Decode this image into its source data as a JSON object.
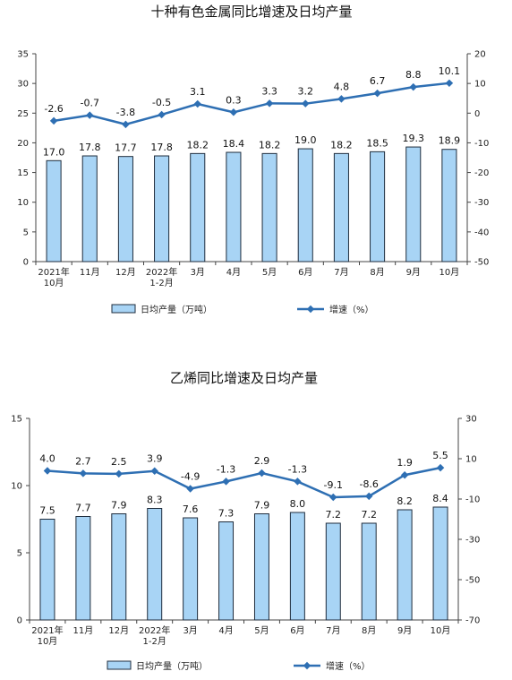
{
  "chart_data": [
    {
      "type": "bar",
      "title": "十种有色金属同比增速及日均产量",
      "categories": [
        "2021年\n10月",
        "11月",
        "12月",
        "2022年\n1-2月",
        "3月",
        "4月",
        "5月",
        "6月",
        "7月",
        "8月",
        "9月",
        "10月"
      ],
      "series": [
        {
          "name": "日均产量（万吨）",
          "type": "bar",
          "axis": "left",
          "values": [
            17.0,
            17.8,
            17.7,
            17.8,
            18.2,
            18.4,
            18.2,
            19.0,
            18.2,
            18.5,
            19.3,
            18.9
          ],
          "labels": [
            "17.0",
            "17.8",
            "17.7",
            "17.8",
            "18.2",
            "18.4",
            "18.2",
            "19.0",
            "18.2",
            "18.5",
            "19.3",
            "18.9"
          ]
        },
        {
          "name": "增速（%）",
          "type": "line",
          "axis": "right",
          "values": [
            -2.6,
            -0.7,
            -3.8,
            -0.5,
            3.1,
            0.3,
            3.3,
            3.2,
            4.8,
            6.7,
            8.8,
            10.1
          ],
          "labels": [
            "-2.6",
            "-0.7",
            "-3.8",
            "-0.5",
            "3.1",
            "0.3",
            "3.3",
            "3.2",
            "4.8",
            "6.7",
            "8.8",
            "10.1"
          ]
        }
      ],
      "y_left": {
        "min": 0,
        "max": 35,
        "step": 5
      },
      "y_right": {
        "min": -50,
        "max": 20,
        "step": 10
      },
      "grid": false,
      "legend_position": "bottom",
      "colors": {
        "bar_fill": "#a8d4f5",
        "bar_stroke": "#1f2d3d",
        "line": "#2e6fb3",
        "axis": "#444444"
      }
    },
    {
      "type": "bar",
      "title": "乙烯同比增速及日均产量",
      "categories": [
        "2021年\n10月",
        "11月",
        "12月",
        "2022年\n1-2月",
        "3月",
        "4月",
        "5月",
        "6月",
        "7月",
        "8月",
        "9月",
        "10月"
      ],
      "series": [
        {
          "name": "日均产量（万吨）",
          "type": "bar",
          "axis": "left",
          "values": [
            7.5,
            7.7,
            7.9,
            8.3,
            7.6,
            7.3,
            7.9,
            8.0,
            7.2,
            7.2,
            8.2,
            8.4
          ],
          "labels": [
            "7.5",
            "7.7",
            "7.9",
            "8.3",
            "7.6",
            "7.3",
            "7.9",
            "8.0",
            "7.2",
            "7.2",
            "8.2",
            "8.4"
          ]
        },
        {
          "name": "增速（%）",
          "type": "line",
          "axis": "right",
          "values": [
            4.0,
            2.7,
            2.5,
            3.9,
            -4.9,
            -1.3,
            2.9,
            -1.3,
            -9.1,
            -8.6,
            1.9,
            5.5
          ],
          "labels": [
            "4.0",
            "2.7",
            "2.5",
            "3.9",
            "-4.9",
            "-1.3",
            "2.9",
            "-1.3",
            "-9.1",
            "-8.6",
            "1.9",
            "5.5"
          ]
        }
      ],
      "y_left": {
        "min": 0,
        "max": 15,
        "step": 5
      },
      "y_right": {
        "min": -70,
        "max": 30,
        "step": 20
      },
      "grid": false,
      "legend_position": "bottom",
      "colors": {
        "bar_fill": "#a8d4f5",
        "bar_stroke": "#1f2d3d",
        "line": "#2e6fb3",
        "axis": "#444444"
      }
    }
  ]
}
